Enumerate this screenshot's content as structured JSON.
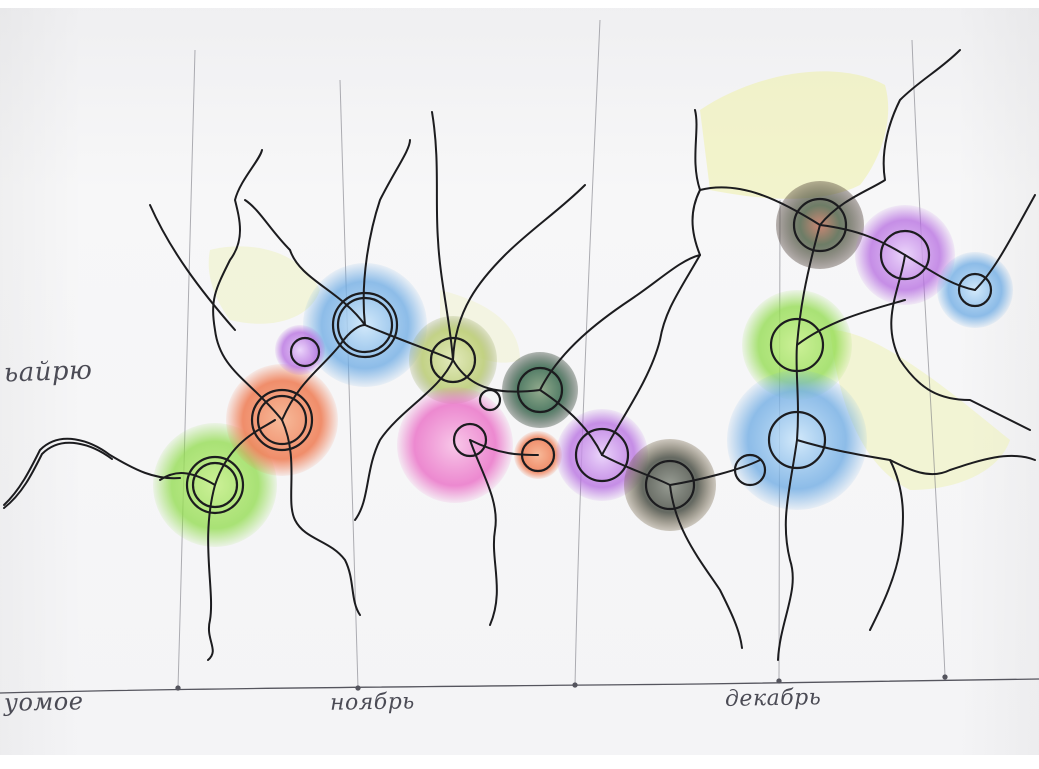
{
  "labels": {
    "left_text": "ьайрю",
    "month_1": "уомое",
    "month_2": "ноябрь",
    "month_3": "декабрь"
  },
  "colors": {
    "paper": "#f7f7f8",
    "ink": "#1c1c1f",
    "pencil": "#4b4b55",
    "green": "#8fdb4a",
    "blue": "#6aa9e3",
    "purple": "#b56be0",
    "pink": "#ea6ec6",
    "orange": "#ef7b52",
    "olive": "#b6c96b",
    "dark_green": "#3f6e55",
    "dark_gray": "#4b5047",
    "yellow": "#eef0a8"
  }
}
